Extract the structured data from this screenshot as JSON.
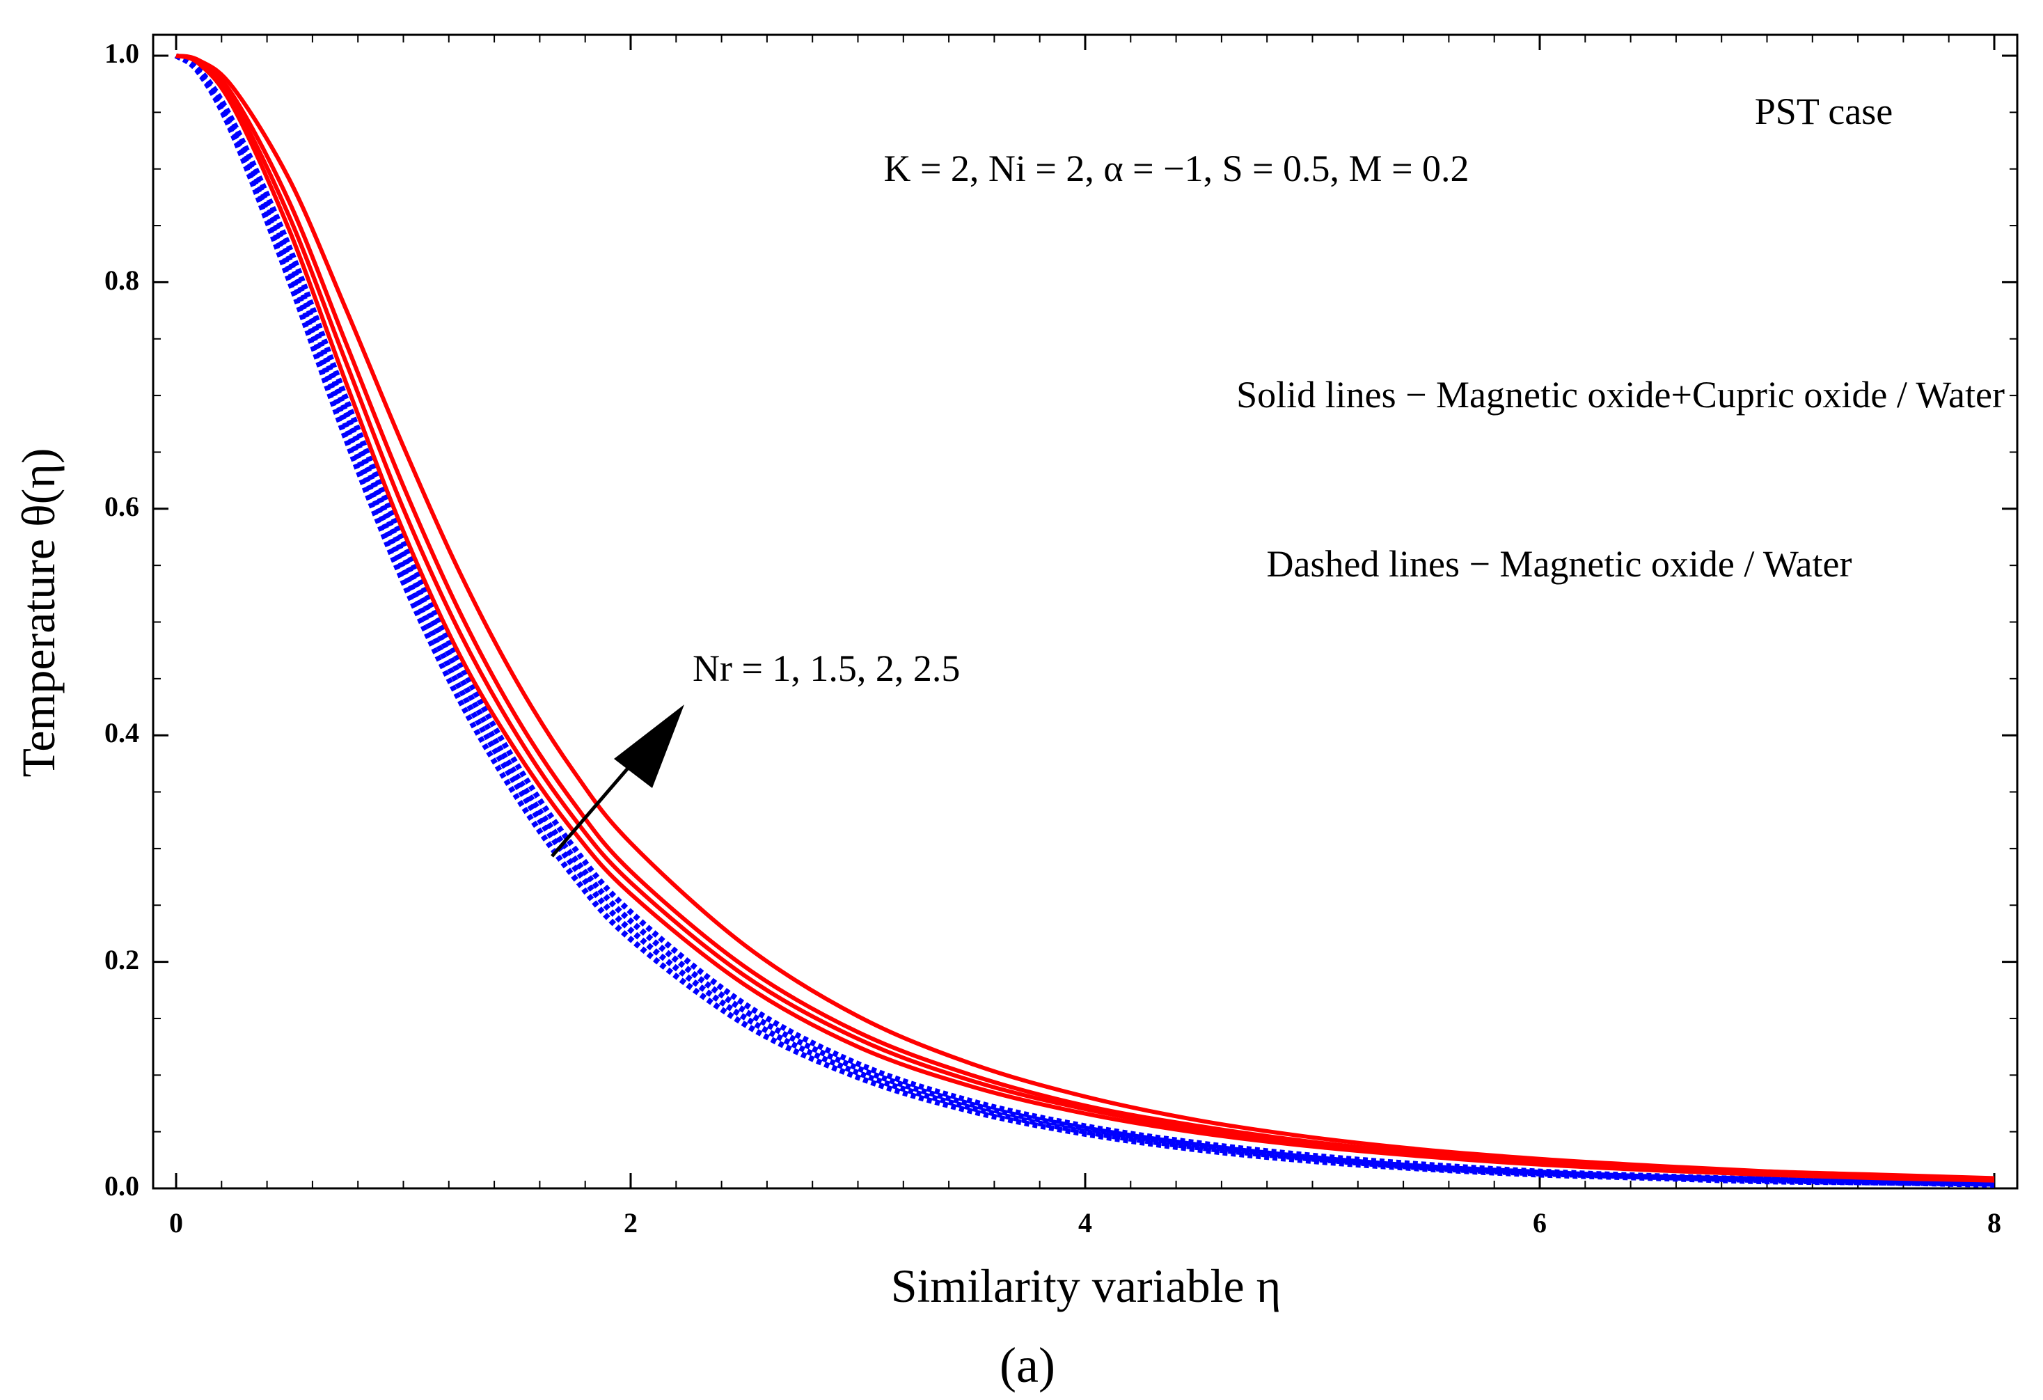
{
  "chart_data": {
    "type": "line",
    "title": "",
    "xlabel": "Similarity variable η",
    "ylabel": "Temperature θ(η)",
    "xlim": [
      0,
      8
    ],
    "ylim": [
      0,
      1.0
    ],
    "xticks": [
      "0",
      "2",
      "4",
      "6",
      "8"
    ],
    "xtick_values": [
      0,
      2,
      4,
      6,
      8
    ],
    "yticks": [
      "0.0",
      "0.2",
      "0.4",
      "0.6",
      "0.8",
      "1.0"
    ],
    "ytick_values": [
      0,
      0.2,
      0.4,
      0.6,
      0.8,
      1.0
    ],
    "x": [
      0,
      0.1,
      0.25,
      0.5,
      0.75,
      1,
      1.25,
      1.5,
      1.75,
      2,
      2.5,
      3,
      3.5,
      4,
      4.5,
      5,
      5.5,
      6,
      6.5,
      7,
      7.5,
      8
    ],
    "series": [
      {
        "name": "Solid, Nr = 1",
        "style": "solid",
        "color": "#ff0000",
        "values": [
          1.0,
          0.993,
          0.955,
          0.845,
          0.71,
          0.58,
          0.47,
          0.385,
          0.315,
          0.26,
          0.18,
          0.125,
          0.09,
          0.066,
          0.049,
          0.037,
          0.028,
          0.021,
          0.016,
          0.012,
          0.009,
          0.007
        ]
      },
      {
        "name": "Solid, Nr = 1.5",
        "style": "solid",
        "color": "#ff0000",
        "values": [
          1.0,
          0.994,
          0.96,
          0.857,
          0.728,
          0.6,
          0.49,
          0.4,
          0.327,
          0.27,
          0.188,
          0.132,
          0.095,
          0.07,
          0.052,
          0.039,
          0.03,
          0.023,
          0.017,
          0.013,
          0.01,
          0.007
        ]
      },
      {
        "name": "Solid, Nr = 2",
        "style": "solid",
        "color": "#ff0000",
        "values": [
          1.0,
          0.995,
          0.965,
          0.87,
          0.745,
          0.62,
          0.508,
          0.415,
          0.34,
          0.28,
          0.196,
          0.138,
          0.1,
          0.073,
          0.055,
          0.041,
          0.031,
          0.024,
          0.018,
          0.014,
          0.011,
          0.008
        ]
      },
      {
        "name": "Solid, Nr = 2.5",
        "style": "solid",
        "color": "#ff0000",
        "values": [
          1.0,
          0.996,
          0.972,
          0.89,
          0.775,
          0.655,
          0.543,
          0.447,
          0.368,
          0.305,
          0.215,
          0.152,
          0.11,
          0.081,
          0.06,
          0.045,
          0.034,
          0.026,
          0.02,
          0.015,
          0.012,
          0.009
        ]
      },
      {
        "name": "Dashed, Nr = 1",
        "style": "dashed",
        "color": "#0000ff",
        "values": [
          1.0,
          0.985,
          0.93,
          0.8,
          0.66,
          0.535,
          0.43,
          0.345,
          0.275,
          0.22,
          0.145,
          0.098,
          0.068,
          0.048,
          0.034,
          0.024,
          0.017,
          0.012,
          0.009,
          0.006,
          0.005,
          0.003
        ]
      },
      {
        "name": "Dashed, Nr = 1.5",
        "style": "dashed",
        "color": "#0000ff",
        "values": [
          1.0,
          0.986,
          0.934,
          0.81,
          0.672,
          0.547,
          0.441,
          0.355,
          0.284,
          0.228,
          0.151,
          0.102,
          0.071,
          0.05,
          0.036,
          0.026,
          0.018,
          0.013,
          0.01,
          0.007,
          0.005,
          0.004
        ]
      },
      {
        "name": "Dashed, Nr = 2",
        "style": "dashed",
        "color": "#0000ff",
        "values": [
          1.0,
          0.987,
          0.938,
          0.82,
          0.684,
          0.559,
          0.452,
          0.364,
          0.292,
          0.236,
          0.157,
          0.106,
          0.074,
          0.053,
          0.038,
          0.027,
          0.019,
          0.014,
          0.01,
          0.008,
          0.006,
          0.004
        ]
      },
      {
        "name": "Dashed, Nr = 2.5",
        "style": "dashed",
        "color": "#0000ff",
        "values": [
          1.0,
          0.988,
          0.942,
          0.83,
          0.696,
          0.571,
          0.463,
          0.374,
          0.301,
          0.244,
          0.163,
          0.11,
          0.077,
          0.055,
          0.04,
          0.029,
          0.021,
          0.015,
          0.011,
          0.008,
          0.006,
          0.004
        ]
      }
    ],
    "annotations": {
      "case": "PST case",
      "params": "K = 2,  Ni = 2,  α = −1, S = 0.5,  M = 0.2",
      "solid_legend": "Solid lines − Magnetic oxide+Cupric oxide / Water",
      "dashed_legend": "Dashed lines − Magnetic oxide / Water",
      "arrow_label": "Nr = 1, 1.5, 2, 2.5",
      "panel_label": "(a)"
    }
  }
}
